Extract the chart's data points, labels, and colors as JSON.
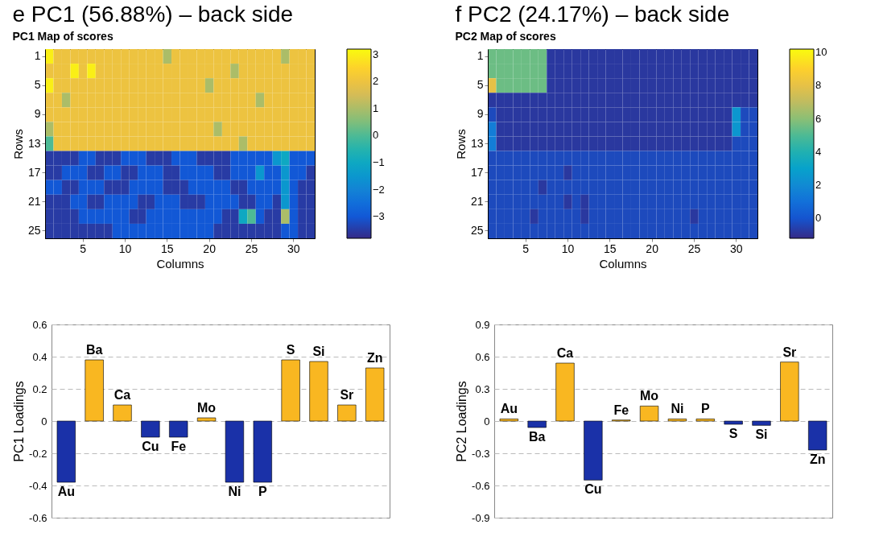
{
  "chart_data": [
    {
      "type": "heatmap",
      "title": "e PC1 (56.88%) – back side",
      "subtitle": "PC1 Map of scores",
      "xlabel": "Columns",
      "ylabel": "Rows",
      "categories": [
        null,
        null,
        null,
        null,
        "5",
        null,
        null,
        null,
        null,
        "10",
        null,
        null,
        null,
        null,
        "15",
        null,
        null,
        null,
        null,
        "20",
        null,
        null,
        null,
        null,
        "25",
        null,
        null,
        null,
        null,
        "30",
        null,
        null
      ],
      "y_categories": [
        "1",
        null,
        "5",
        null,
        "9",
        null,
        "13",
        null,
        "17",
        null,
        "21",
        null,
        "25"
      ],
      "clim": [
        -3.8,
        3.2
      ],
      "cticks": [
        -3,
        -2,
        -1,
        0,
        1,
        2,
        3
      ],
      "cells": [
        [
          3,
          2,
          2,
          2,
          2,
          2,
          2,
          2,
          2,
          2,
          2,
          2,
          2,
          2,
          1,
          2,
          2,
          2,
          2,
          2,
          2,
          2,
          2,
          2,
          2,
          2,
          2,
          2,
          1,
          2,
          2,
          2
        ],
        [
          2,
          2,
          2,
          3,
          2,
          3,
          2,
          2,
          2,
          2,
          2,
          2,
          2,
          2,
          2,
          2,
          2,
          2,
          2,
          2,
          2,
          2,
          1,
          2,
          2,
          2,
          2,
          2,
          2,
          2,
          2,
          2
        ],
        [
          3,
          2,
          2,
          2,
          2,
          2,
          2,
          2,
          2,
          2,
          2,
          2,
          2,
          2,
          2,
          2,
          2,
          2,
          2,
          1,
          2,
          2,
          2,
          2,
          2,
          2,
          2,
          2,
          2,
          2,
          2,
          2
        ],
        [
          2,
          2,
          1,
          2,
          2,
          2,
          2,
          2,
          2,
          2,
          2,
          2,
          2,
          2,
          2,
          2,
          2,
          2,
          2,
          2,
          2,
          2,
          2,
          2,
          2,
          1,
          2,
          2,
          2,
          2,
          2,
          2
        ],
        [
          2,
          2,
          2,
          2,
          2,
          2,
          2,
          2,
          2,
          2,
          2,
          2,
          2,
          2,
          2,
          2,
          2,
          2,
          2,
          2,
          2,
          2,
          2,
          2,
          2,
          2,
          2,
          2,
          2,
          2,
          2,
          2
        ],
        [
          1,
          2,
          2,
          2,
          2,
          2,
          2,
          2,
          2,
          2,
          2,
          2,
          2,
          2,
          2,
          2,
          2,
          2,
          2,
          2,
          1,
          2,
          2,
          2,
          2,
          2,
          2,
          2,
          2,
          2,
          2,
          2
        ],
        [
          0,
          2,
          2,
          2,
          2,
          2,
          2,
          2,
          2,
          2,
          2,
          2,
          2,
          2,
          2,
          2,
          2,
          2,
          2,
          2,
          2,
          2,
          2,
          1,
          2,
          2,
          2,
          2,
          2,
          2,
          2,
          2
        ],
        [
          -3.5,
          -3.5,
          -3.5,
          -3.5,
          -3,
          -3,
          -3.5,
          -3.5,
          -3.5,
          -3,
          -3,
          -3,
          -3.5,
          -3.5,
          -3.5,
          -3,
          -3,
          -3,
          -3.5,
          -3.5,
          -3.5,
          -3.5,
          -3,
          -3,
          -3,
          -3,
          -3,
          -1.5,
          -1,
          -3,
          -3,
          -3
        ],
        [
          -3.5,
          -3.5,
          -3,
          -3,
          -3,
          -3.5,
          -3.5,
          -3,
          -3,
          -3.5,
          -3.5,
          -3,
          -3,
          -3,
          -3.5,
          -3.5,
          -3,
          -3,
          -3,
          -3,
          -3.5,
          -3.5,
          -3,
          -3,
          -3,
          -1.5,
          -3,
          -3,
          -1.5,
          -3,
          -3,
          -3.5
        ],
        [
          -3,
          -3,
          -3.5,
          -3.5,
          -3,
          -3,
          -3,
          -3.5,
          -3.5,
          -3.5,
          -3,
          -3,
          -3,
          -3,
          -3.5,
          -3.5,
          -3.5,
          -3,
          -3,
          -3,
          -3,
          -3,
          -3.5,
          -3.5,
          -3,
          -3,
          -3,
          -3,
          -1.5,
          -3,
          -3.5,
          -3.5
        ],
        [
          -3.5,
          -3.5,
          -3.5,
          -3,
          -3,
          -3.5,
          -3.5,
          -3,
          -3,
          -3,
          -3,
          -3.5,
          -3.5,
          -3,
          -3,
          -3,
          -3.5,
          -3.5,
          -3.5,
          -3,
          -3,
          -3,
          -3,
          -3.5,
          -3.5,
          -3,
          -3,
          -3.5,
          -1.5,
          -3,
          -3.5,
          -3.5
        ],
        [
          -3.5,
          -3.5,
          -3.5,
          -3.5,
          -3,
          -3,
          -3,
          -3,
          -3,
          -3,
          -3.5,
          -3.5,
          -3,
          -3,
          -3,
          -3,
          -3,
          -3,
          -3,
          -3,
          -3,
          -3.5,
          -3.5,
          -1,
          0,
          -3,
          -3.5,
          -3.5,
          1,
          -3,
          -3.5,
          -3.5
        ],
        [
          -3.5,
          -3.5,
          -3.5,
          -3.5,
          -3.5,
          -3.5,
          -3.5,
          -3.5,
          -3,
          -3,
          -3,
          -3,
          -3,
          -3,
          -3,
          -3,
          -3,
          -3,
          -3,
          -3,
          -3.5,
          -3.5,
          -3.5,
          -3.5,
          -3.5,
          -3.5,
          -3.5,
          -3.5,
          -3,
          -3,
          -3.5,
          -3.5
        ]
      ]
    },
    {
      "type": "bar",
      "ylabel": "PC1 Loadings",
      "categories": [
        "Au",
        "Ba",
        "Ca",
        "Cu",
        "Fe",
        "Mo",
        "Ni",
        "P",
        "S",
        "Si",
        "Sr",
        "Zn"
      ],
      "values": [
        -0.38,
        0.38,
        0.1,
        -0.1,
        -0.1,
        0.02,
        -0.38,
        -0.38,
        0.38,
        0.37,
        0.1,
        0.33
      ],
      "colors": [
        "#1a31a8",
        "#f9b721",
        "#f9b721",
        "#1a31a8",
        "#1a31a8",
        "#f9b721",
        "#1a31a8",
        "#1a31a8",
        "#f9b721",
        "#f9b721",
        "#f9b721",
        "#f9b721"
      ],
      "ylim": [
        -0.6,
        0.6
      ],
      "yticks": [
        -0.6,
        -0.4,
        -0.2,
        0,
        0.2,
        0.4,
        0.6
      ],
      "grid": "y"
    },
    {
      "type": "heatmap",
      "title": "f PC2 (24.17%) – back side",
      "subtitle": "PC2 Map of scores",
      "xlabel": "Columns",
      "ylabel": "Rows",
      "categories": [
        null,
        null,
        null,
        null,
        "5",
        null,
        null,
        null,
        null,
        "10",
        null,
        null,
        null,
        null,
        "15",
        null,
        null,
        null,
        null,
        "20",
        null,
        null,
        null,
        null,
        "25",
        null,
        null,
        null,
        null,
        "30",
        null,
        null
      ],
      "y_categories": [
        "1",
        null,
        "5",
        null,
        "9",
        null,
        "13",
        null,
        "17",
        null,
        "21",
        null,
        "25"
      ],
      "clim": [
        -1.2,
        10.2
      ],
      "cticks": [
        0,
        2,
        4,
        6,
        8,
        10
      ],
      "cells": [
        [
          5.5,
          5.5,
          5.5,
          5.5,
          5.5,
          5.5,
          5.5,
          -0.8,
          -0.8,
          -0.8,
          -0.8,
          -0.8,
          -0.8,
          -0.8,
          -0.8,
          -0.8,
          -0.8,
          -0.8,
          -0.8,
          -0.8,
          -0.8,
          -0.8,
          -0.8,
          -0.8,
          -0.8,
          -0.8,
          -0.8,
          -0.8,
          -0.8,
          -0.8,
          -0.8,
          -0.8
        ],
        [
          5.5,
          5.5,
          5.5,
          5.5,
          5.5,
          5.5,
          5.5,
          -0.8,
          -0.8,
          -0.8,
          -0.8,
          -0.8,
          -0.8,
          -0.8,
          -0.8,
          -0.8,
          -0.8,
          -0.8,
          -0.8,
          -0.8,
          -0.8,
          -0.8,
          -0.8,
          -0.8,
          -0.8,
          -0.8,
          -0.8,
          -0.8,
          -0.8,
          -0.8,
          -0.8,
          -0.8
        ],
        [
          8,
          5.5,
          5.5,
          5.5,
          5.5,
          5.5,
          5.5,
          -0.8,
          -0.8,
          -0.8,
          -0.8,
          -0.8,
          -0.8,
          -0.8,
          -0.8,
          -0.8,
          -0.8,
          -0.8,
          -0.8,
          -0.8,
          -0.8,
          -0.8,
          -0.8,
          -0.8,
          -0.8,
          -0.8,
          -0.8,
          -0.8,
          -0.8,
          -0.8,
          -0.8,
          -0.8
        ],
        [
          -0.8,
          -0.8,
          -0.8,
          -0.8,
          -0.8,
          -0.8,
          -0.8,
          -0.8,
          -0.8,
          -0.8,
          -0.8,
          -0.8,
          -0.8,
          -0.8,
          -0.8,
          -0.8,
          -0.8,
          -0.8,
          -0.8,
          -0.8,
          -0.8,
          -0.8,
          -0.8,
          -0.8,
          -0.8,
          -0.8,
          -0.8,
          -0.8,
          -0.8,
          -0.8,
          -0.8,
          -0.8
        ],
        [
          -0.3,
          -0.8,
          -0.8,
          -0.8,
          -0.8,
          -0.8,
          -0.8,
          -0.8,
          -0.8,
          -0.8,
          -0.8,
          -0.8,
          -0.8,
          -0.8,
          -0.8,
          -0.8,
          -0.8,
          -0.8,
          -0.8,
          -0.8,
          -0.8,
          -0.8,
          -0.8,
          -0.8,
          -0.8,
          -0.8,
          -0.8,
          -0.8,
          -0.8,
          2.5,
          -0.3,
          -0.3
        ],
        [
          1.5,
          -0.8,
          -0.8,
          -0.8,
          -0.8,
          -0.8,
          -0.8,
          -0.8,
          -0.8,
          -0.8,
          -0.8,
          -0.8,
          -0.8,
          -0.8,
          -0.8,
          -0.8,
          -0.8,
          -0.8,
          -0.8,
          -0.8,
          -0.8,
          -0.8,
          -0.8,
          -0.8,
          -0.8,
          -0.8,
          -0.8,
          -0.8,
          -0.8,
          2.5,
          -0.3,
          -0.3
        ],
        [
          1.5,
          -0.8,
          -0.8,
          -0.8,
          -0.8,
          -0.8,
          -0.8,
          -0.8,
          -0.8,
          -0.8,
          -0.8,
          -0.8,
          -0.8,
          -0.8,
          -0.8,
          -0.8,
          -0.8,
          -0.8,
          -0.8,
          -0.8,
          -0.8,
          -0.8,
          -0.8,
          -0.8,
          -0.8,
          -0.8,
          -0.8,
          -0.8,
          -0.8,
          -0.3,
          -0.3,
          -0.3
        ],
        [
          -0.3,
          -0.3,
          -0.3,
          -0.3,
          -0.3,
          -0.3,
          -0.3,
          -0.3,
          -0.3,
          -0.3,
          -0.3,
          -0.3,
          -0.3,
          -0.3,
          -0.3,
          -0.3,
          -0.3,
          -0.3,
          -0.3,
          -0.3,
          -0.3,
          -0.3,
          -0.3,
          -0.3,
          -0.3,
          -0.3,
          -0.3,
          -0.3,
          -0.3,
          -0.3,
          -0.3,
          -0.3
        ],
        [
          -0.3,
          -0.3,
          -0.3,
          -0.3,
          -0.3,
          -0.3,
          -0.3,
          -0.3,
          -0.3,
          -0.8,
          -0.3,
          -0.3,
          -0.3,
          -0.3,
          -0.3,
          -0.3,
          -0.3,
          -0.3,
          -0.3,
          -0.3,
          -0.3,
          -0.3,
          -0.3,
          -0.3,
          -0.3,
          -0.3,
          -0.3,
          -0.3,
          -0.3,
          -0.3,
          -0.3,
          -0.3
        ],
        [
          -0.3,
          -0.3,
          -0.3,
          -0.3,
          -0.3,
          -0.3,
          -0.8,
          -0.3,
          -0.3,
          -0.3,
          -0.3,
          -0.3,
          -0.3,
          -0.3,
          -0.3,
          -0.3,
          -0.3,
          -0.3,
          -0.3,
          -0.3,
          -0.3,
          -0.3,
          -0.3,
          -0.3,
          -0.3,
          -0.3,
          -0.3,
          -0.3,
          -0.3,
          -0.3,
          -0.3,
          -0.3
        ],
        [
          -0.3,
          -0.3,
          -0.3,
          -0.3,
          -0.3,
          -0.3,
          -0.3,
          -0.3,
          -0.3,
          -0.8,
          -0.3,
          -0.8,
          -0.3,
          -0.3,
          -0.3,
          -0.3,
          -0.3,
          -0.3,
          -0.3,
          -0.3,
          -0.3,
          -0.3,
          -0.3,
          -0.3,
          -0.3,
          -0.3,
          -0.3,
          -0.3,
          -0.3,
          -0.3,
          -0.3,
          -0.3
        ],
        [
          -0.3,
          -0.3,
          -0.3,
          -0.3,
          -0.3,
          -0.8,
          -0.3,
          -0.3,
          -0.3,
          -0.3,
          -0.3,
          -0.8,
          -0.3,
          -0.3,
          -0.3,
          -0.3,
          -0.3,
          -0.3,
          -0.3,
          -0.3,
          -0.3,
          -0.3,
          -0.3,
          -0.3,
          -0.8,
          -0.3,
          -0.3,
          -0.3,
          -0.3,
          -0.3,
          -0.3,
          -0.3
        ],
        [
          -0.3,
          -0.3,
          -0.3,
          -0.3,
          -0.3,
          -0.3,
          -0.3,
          -0.3,
          -0.3,
          -0.3,
          -0.3,
          -0.3,
          -0.3,
          -0.3,
          -0.3,
          -0.3,
          -0.3,
          -0.3,
          -0.3,
          -0.3,
          -0.3,
          -0.3,
          -0.3,
          -0.3,
          -0.3,
          -0.3,
          -0.3,
          -0.3,
          -0.3,
          -0.3,
          -0.3,
          -0.3
        ]
      ]
    },
    {
      "type": "bar",
      "ylabel": "PC2 Loadings",
      "categories": [
        "Au",
        "Ba",
        "Ca",
        "Cu",
        "Fe",
        "Mo",
        "Ni",
        "P",
        "S",
        "Si",
        "Sr",
        "Zn"
      ],
      "values": [
        0.02,
        -0.06,
        0.54,
        -0.55,
        0.01,
        0.14,
        0.02,
        0.02,
        -0.03,
        -0.04,
        0.55,
        -0.27
      ],
      "colors": [
        "#f9b721",
        "#1a31a8",
        "#f9b721",
        "#1a31a8",
        "#f9b721",
        "#f9b721",
        "#f9b721",
        "#f9b721",
        "#1a31a8",
        "#1a31a8",
        "#f9b721",
        "#1a31a8"
      ],
      "ylim": [
        -0.9,
        0.9
      ],
      "yticks": [
        -0.9,
        -0.6,
        -0.3,
        0,
        0.3,
        0.6,
        0.9
      ],
      "grid": "y"
    }
  ]
}
